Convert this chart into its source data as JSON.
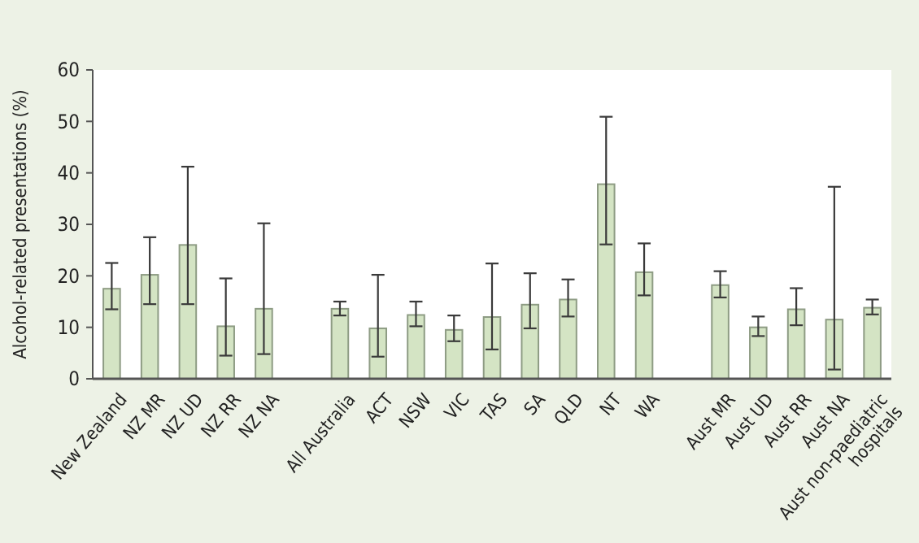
{
  "chart_data": {
    "type": "bar",
    "ylabel": "Alcohol-related presentations (%)",
    "categories": [
      "New Zealand",
      "NZ MR",
      "NZ UD",
      "NZ RR",
      "NZ NA",
      null,
      "All Australia",
      "ACT",
      "NSW",
      "VIC",
      "TAS",
      "SA",
      "QLD",
      "NT",
      "WA",
      null,
      "Aust MR",
      "Aust UD",
      "Aust RR",
      "Aust NA",
      "Aust non-paediatric hospitals"
    ],
    "values": [
      17.5,
      20.2,
      26,
      10.2,
      13.6,
      null,
      13.6,
      9.8,
      12.4,
      9.5,
      12,
      14.4,
      15.4,
      37.8,
      20.7,
      null,
      18.2,
      10,
      13.5,
      11.5,
      13.8
    ],
    "errors": [
      [
        13.5,
        22.5
      ],
      [
        14.5,
        27.5
      ],
      [
        14.5,
        41.2
      ],
      [
        4.5,
        19.5
      ],
      [
        4.8,
        30.2
      ],
      null,
      [
        12.3,
        15
      ],
      [
        4.3,
        20.2
      ],
      [
        10.2,
        15
      ],
      [
        7.3,
        12.3
      ],
      [
        5.7,
        22.4
      ],
      [
        9.8,
        20.5
      ],
      [
        12.1,
        19.3
      ],
      [
        26.1,
        50.9
      ],
      [
        16.2,
        26.3
      ],
      null,
      [
        15.8,
        20.9
      ],
      [
        8.3,
        12.1
      ],
      [
        10.4,
        17.6
      ],
      [
        1.8,
        37.3
      ],
      [
        12.5,
        15.4
      ]
    ],
    "color": "#d4e4c4",
    "ylim": [
      0,
      60
    ],
    "yticks": [
      0,
      10,
      20,
      30,
      40,
      50,
      60
    ],
    "grid": false
  }
}
